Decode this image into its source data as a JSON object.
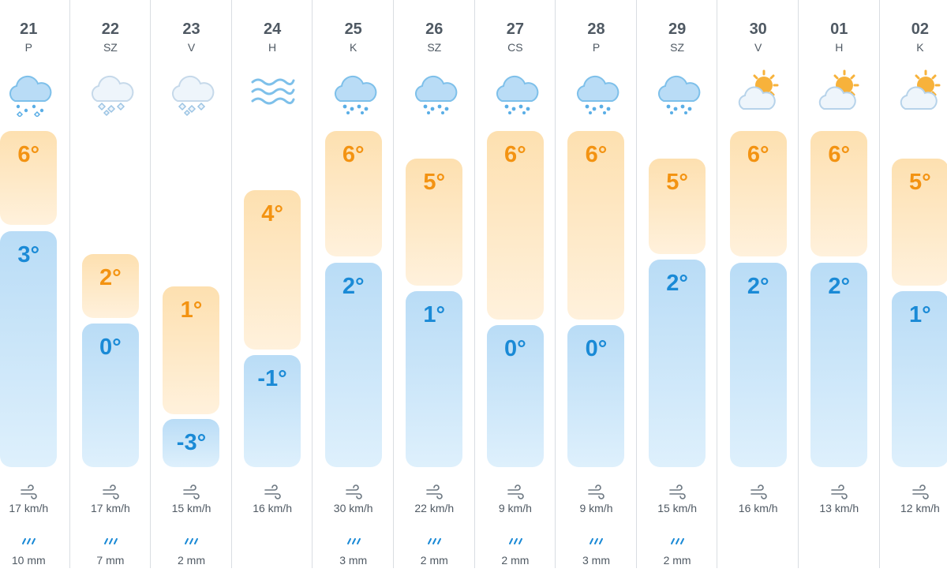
{
  "colors": {
    "high_temp": "#f39312",
    "low_temp": "#1a8ad6",
    "text": "#4f5963",
    "separator": "#d9dde2"
  },
  "days": [
    {
      "date": "21",
      "dow": "P",
      "icon": "rain-snow-icon",
      "high": "6°",
      "low": "3°",
      "wind": "17 km/h",
      "precip": "10 mm"
    },
    {
      "date": "22",
      "dow": "SZ",
      "icon": "snow-icon",
      "high": "2°",
      "low": "0°",
      "wind": "17 km/h",
      "precip": "7 mm"
    },
    {
      "date": "23",
      "dow": "V",
      "icon": "snow-icon",
      "high": "1°",
      "low": "-3°",
      "wind": "15 km/h",
      "precip": "2 mm"
    },
    {
      "date": "24",
      "dow": "H",
      "icon": "fog-icon",
      "high": "4°",
      "low": "-1°",
      "wind": "16 km/h",
      "precip": ""
    },
    {
      "date": "25",
      "dow": "K",
      "icon": "rain-icon",
      "high": "6°",
      "low": "2°",
      "wind": "30 km/h",
      "precip": "3 mm"
    },
    {
      "date": "26",
      "dow": "SZ",
      "icon": "rain-icon",
      "high": "5°",
      "low": "1°",
      "wind": "22 km/h",
      "precip": "2 mm"
    },
    {
      "date": "27",
      "dow": "CS",
      "icon": "rain-icon",
      "high": "6°",
      "low": "0°",
      "wind": "9 km/h",
      "precip": "2 mm"
    },
    {
      "date": "28",
      "dow": "P",
      "icon": "rain-icon",
      "high": "6°",
      "low": "0°",
      "wind": "9 km/h",
      "precip": "3 mm"
    },
    {
      "date": "29",
      "dow": "SZ",
      "icon": "rain-icon",
      "high": "5°",
      "low": "2°",
      "wind": "15 km/h",
      "precip": "2 mm"
    },
    {
      "date": "30",
      "dow": "V",
      "icon": "partly-cloudy-icon",
      "high": "6°",
      "low": "2°",
      "wind": "16 km/h",
      "precip": ""
    },
    {
      "date": "01",
      "dow": "H",
      "icon": "partly-cloudy-icon",
      "high": "6°",
      "low": "2°",
      "wind": "13 km/h",
      "precip": ""
    },
    {
      "date": "02",
      "dow": "K",
      "icon": "partly-cloudy-icon",
      "high": "5°",
      "low": "1°",
      "wind": "12 km/h",
      "precip": ""
    }
  ]
}
